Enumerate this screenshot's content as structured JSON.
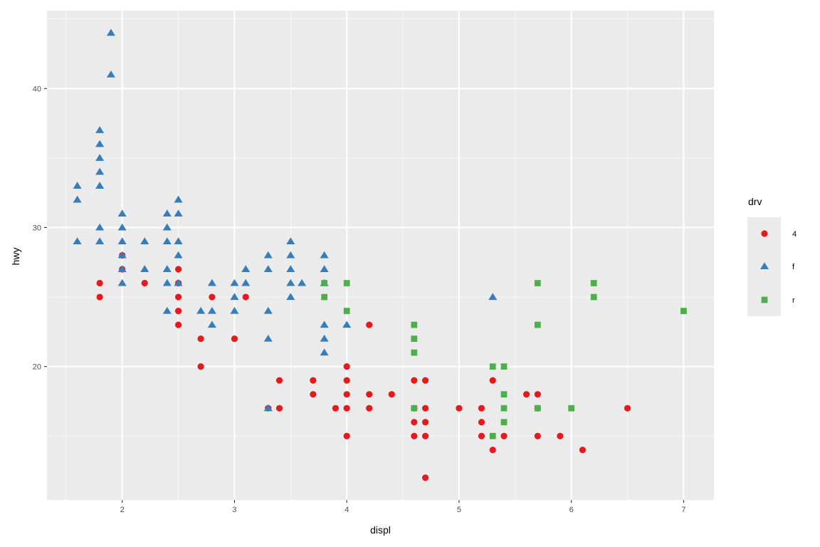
{
  "chart_data": {
    "type": "scatter",
    "title": "",
    "xlabel": "displ",
    "ylabel": "hwy",
    "xlim": [
      1.33,
      7.27
    ],
    "ylim": [
      10.4,
      45.6
    ],
    "x_ticks": [
      2,
      3,
      4,
      5,
      6,
      7
    ],
    "y_ticks": [
      20,
      30,
      40
    ],
    "grid": true,
    "legend": {
      "title": "drv",
      "position": "right"
    },
    "series": [
      {
        "name": "4",
        "color": "#E41A1C",
        "shape": "circle",
        "points": [
          [
            1.8,
            26
          ],
          [
            1.8,
            25
          ],
          [
            2.0,
            28
          ],
          [
            2.0,
            27
          ],
          [
            2.2,
            26
          ],
          [
            2.5,
            27
          ],
          [
            2.5,
            26
          ],
          [
            2.5,
            25
          ],
          [
            2.5,
            24
          ],
          [
            2.5,
            23
          ],
          [
            2.7,
            22
          ],
          [
            2.7,
            20
          ],
          [
            2.8,
            25
          ],
          [
            3.0,
            22
          ],
          [
            3.1,
            25
          ],
          [
            3.3,
            17
          ],
          [
            3.4,
            19
          ],
          [
            3.4,
            17
          ],
          [
            3.7,
            19
          ],
          [
            3.7,
            18
          ],
          [
            3.9,
            17
          ],
          [
            4.0,
            20
          ],
          [
            4.0,
            19
          ],
          [
            4.0,
            18
          ],
          [
            4.0,
            17
          ],
          [
            4.0,
            15
          ],
          [
            4.2,
            23
          ],
          [
            4.2,
            18
          ],
          [
            4.2,
            17
          ],
          [
            4.4,
            18
          ],
          [
            4.6,
            19
          ],
          [
            4.6,
            17
          ],
          [
            4.6,
            16
          ],
          [
            4.6,
            15
          ],
          [
            4.7,
            19
          ],
          [
            4.7,
            17
          ],
          [
            4.7,
            16
          ],
          [
            4.7,
            15
          ],
          [
            4.7,
            12
          ],
          [
            5.0,
            17
          ],
          [
            5.2,
            17
          ],
          [
            5.2,
            16
          ],
          [
            5.2,
            15
          ],
          [
            5.3,
            19
          ],
          [
            5.3,
            14
          ],
          [
            5.4,
            15
          ],
          [
            5.6,
            18
          ],
          [
            5.7,
            18
          ],
          [
            5.7,
            17
          ],
          [
            5.7,
            15
          ],
          [
            5.9,
            15
          ],
          [
            6.1,
            14
          ],
          [
            6.5,
            17
          ]
        ]
      },
      {
        "name": "f",
        "color": "#377EB8",
        "shape": "triangle",
        "points": [
          [
            1.6,
            33
          ],
          [
            1.6,
            32
          ],
          [
            1.6,
            29
          ],
          [
            1.8,
            37
          ],
          [
            1.8,
            36
          ],
          [
            1.8,
            35
          ],
          [
            1.8,
            34
          ],
          [
            1.8,
            33
          ],
          [
            1.8,
            30
          ],
          [
            1.8,
            29
          ],
          [
            1.9,
            44
          ],
          [
            1.9,
            41
          ],
          [
            2.0,
            31
          ],
          [
            2.0,
            30
          ],
          [
            2.0,
            29
          ],
          [
            2.0,
            28
          ],
          [
            2.0,
            27
          ],
          [
            2.0,
            26
          ],
          [
            2.2,
            29
          ],
          [
            2.2,
            27
          ],
          [
            2.4,
            31
          ],
          [
            2.4,
            30
          ],
          [
            2.4,
            29
          ],
          [
            2.4,
            27
          ],
          [
            2.4,
            26
          ],
          [
            2.4,
            24
          ],
          [
            2.5,
            32
          ],
          [
            2.5,
            31
          ],
          [
            2.5,
            29
          ],
          [
            2.5,
            28
          ],
          [
            2.5,
            26
          ],
          [
            2.7,
            24
          ],
          [
            2.8,
            26
          ],
          [
            2.8,
            24
          ],
          [
            2.8,
            23
          ],
          [
            3.0,
            26
          ],
          [
            3.0,
            25
          ],
          [
            3.0,
            24
          ],
          [
            3.1,
            27
          ],
          [
            3.1,
            26
          ],
          [
            3.3,
            28
          ],
          [
            3.3,
            27
          ],
          [
            3.3,
            24
          ],
          [
            3.3,
            22
          ],
          [
            3.3,
            17
          ],
          [
            3.5,
            29
          ],
          [
            3.5,
            28
          ],
          [
            3.5,
            27
          ],
          [
            3.5,
            26
          ],
          [
            3.5,
            25
          ],
          [
            3.6,
            26
          ],
          [
            3.8,
            28
          ],
          [
            3.8,
            27
          ],
          [
            3.8,
            26
          ],
          [
            3.8,
            23
          ],
          [
            3.8,
            22
          ],
          [
            3.8,
            21
          ],
          [
            4.0,
            23
          ],
          [
            5.3,
            25
          ]
        ]
      },
      {
        "name": "r",
        "color": "#4DAF4A",
        "shape": "square",
        "points": [
          [
            3.8,
            26
          ],
          [
            3.8,
            25
          ],
          [
            4.0,
            26
          ],
          [
            4.0,
            24
          ],
          [
            4.6,
            23
          ],
          [
            4.6,
            22
          ],
          [
            4.6,
            21
          ],
          [
            4.6,
            17
          ],
          [
            5.3,
            20
          ],
          [
            5.3,
            15
          ],
          [
            5.4,
            20
          ],
          [
            5.4,
            18
          ],
          [
            5.4,
            17
          ],
          [
            5.4,
            16
          ],
          [
            5.7,
            26
          ],
          [
            5.7,
            23
          ],
          [
            5.7,
            17
          ],
          [
            6.0,
            17
          ],
          [
            6.2,
            26
          ],
          [
            6.2,
            25
          ],
          [
            7.0,
            24
          ]
        ]
      }
    ]
  }
}
